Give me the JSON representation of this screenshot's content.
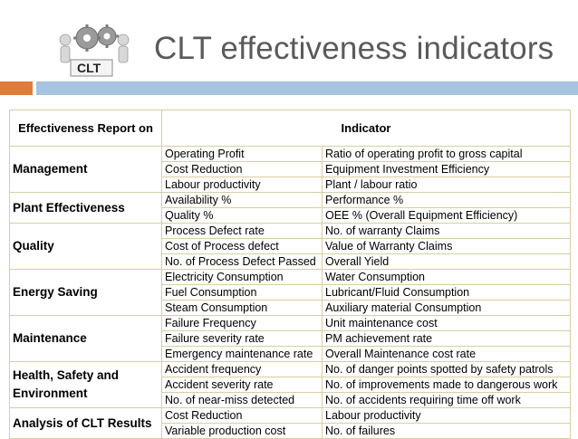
{
  "title": "CLT effectiveness indicators",
  "logo": {
    "text": "CLT",
    "icon": "gears-people-logo"
  },
  "colors": {
    "accent_orange": "#e07b39",
    "accent_blue": "#a6c3e0",
    "grid": "#d9cda0"
  },
  "table": {
    "header": {
      "report_on": "Effectiveness Report on",
      "indicator": "Indicator"
    },
    "groups": [
      {
        "category": "Management",
        "rows": [
          [
            "Operating Profit",
            "Ratio of operating profit to gross capital"
          ],
          [
            "Cost Reduction",
            "Equipment Investment Efficiency"
          ],
          [
            "Labour productivity",
            "Plant / labour ratio"
          ]
        ]
      },
      {
        "category": "Plant Effectiveness",
        "rows": [
          [
            "Availability %",
            "Performance %"
          ],
          [
            "Quality %",
            "OEE % (Overall Equipment Efficiency)"
          ]
        ]
      },
      {
        "category": "Quality",
        "rows": [
          [
            "Process Defect rate",
            "No. of warranty Claims"
          ],
          [
            "Cost of Process defect",
            "Value of Warranty Claims"
          ],
          [
            "No. of Process Defect Passed",
            "Overall Yield"
          ]
        ]
      },
      {
        "category": "Energy Saving",
        "rows": [
          [
            "Electricity Consumption",
            "Water Consumption"
          ],
          [
            "Fuel Consumption",
            "Lubricant/Fluid Consumption"
          ],
          [
            "Steam Consumption",
            "Auxiliary material Consumption"
          ]
        ]
      },
      {
        "category": "Maintenance",
        "rows": [
          [
            "Failure Frequency",
            "Unit maintenance cost"
          ],
          [
            "Failure severity rate",
            "PM achievement rate"
          ],
          [
            "Emergency maintenance rate",
            "Overall Maintenance cost rate"
          ]
        ]
      },
      {
        "category": "Health, Safety and Environment",
        "rows": [
          [
            "Accident frequency",
            "No. of danger points spotted by safety patrols"
          ],
          [
            "Accident severity rate",
            "No. of improvements made to dangerous work"
          ],
          [
            "No. of near-miss detected",
            "No. of accidents requiring time off work"
          ]
        ]
      },
      {
        "category": "Analysis of CLT Results",
        "rows": [
          [
            "Cost Reduction",
            "Labour productivity"
          ],
          [
            "Variable production cost",
            "No. of failures"
          ]
        ]
      }
    ]
  }
}
